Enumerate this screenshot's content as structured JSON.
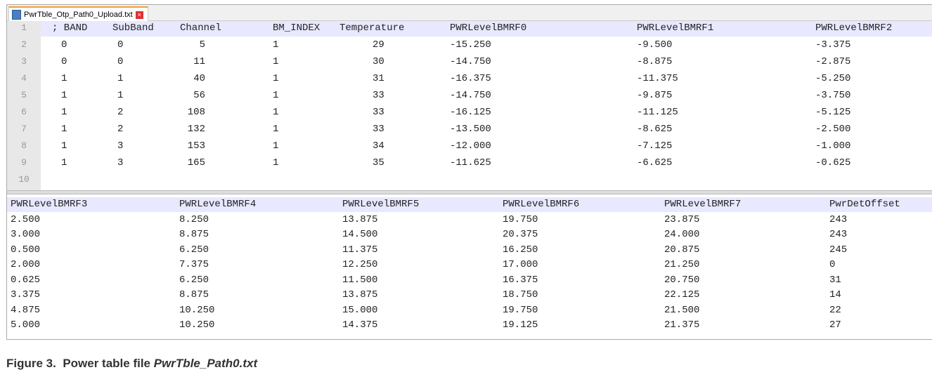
{
  "tab": {
    "title": "PwrTble_Otp_Path0_Upload.txt"
  },
  "top_panel": {
    "line_numbers": [
      "1",
      "2",
      "3",
      "4",
      "5",
      "6",
      "7",
      "8",
      "9",
      "10"
    ],
    "header": [
      "; BAND",
      "SubBand",
      "Channel",
      "BM_INDEX",
      "Temperature",
      "PWRLevelBMRF0",
      "PWRLevelBMRF1",
      "PWRLevelBMRF2"
    ],
    "rows": [
      [
        "0",
        "0",
        "5",
        "1",
        "29",
        "-15.250",
        "-9.500",
        "-3.375"
      ],
      [
        "0",
        "0",
        "11",
        "1",
        "30",
        "-14.750",
        "-8.875",
        "-2.875"
      ],
      [
        "1",
        "1",
        "40",
        "1",
        "31",
        "-16.375",
        "-11.375",
        "-5.250"
      ],
      [
        "1",
        "1",
        "56",
        "1",
        "33",
        "-14.750",
        "-9.875",
        "-3.750"
      ],
      [
        "1",
        "2",
        "108",
        "1",
        "33",
        "-16.125",
        "-11.125",
        "-5.125"
      ],
      [
        "1",
        "2",
        "132",
        "1",
        "33",
        "-13.500",
        "-8.625",
        "-2.500"
      ],
      [
        "1",
        "3",
        "153",
        "1",
        "34",
        "-12.000",
        "-7.125",
        "-1.000"
      ],
      [
        "1",
        "3",
        "165",
        "1",
        "35",
        "-11.625",
        "-6.625",
        "-0.625"
      ]
    ]
  },
  "bottom_panel": {
    "header": [
      "PWRLevelBMRF3",
      "PWRLevelBMRF4",
      "PWRLevelBMRF5",
      "PWRLevelBMRF6",
      "PWRLevelBMRF7",
      "PwrDetOffset"
    ],
    "rows": [
      [
        "2.500",
        "8.250",
        "13.875",
        "19.750",
        "23.875",
        "243"
      ],
      [
        "3.000",
        "8.875",
        "14.500",
        "20.375",
        "24.000",
        "243"
      ],
      [
        "0.500",
        "6.250",
        "11.375",
        "16.250",
        "20.875",
        "245"
      ],
      [
        "2.000",
        "7.375",
        "12.250",
        "17.000",
        "21.250",
        "0"
      ],
      [
        "0.625",
        "6.250",
        "11.500",
        "16.375",
        "20.750",
        "31"
      ],
      [
        "3.375",
        "8.875",
        "13.875",
        "18.750",
        "22.125",
        "14"
      ],
      [
        "4.875",
        "10.250",
        "15.000",
        "19.750",
        "21.500",
        "22"
      ],
      [
        "5.000",
        "10.250",
        "14.375",
        "19.125",
        "21.375",
        "27"
      ]
    ]
  },
  "caption": {
    "label": "Figure 3.",
    "text": "Power table file",
    "filename": "PwrTble_Path0.txt"
  }
}
